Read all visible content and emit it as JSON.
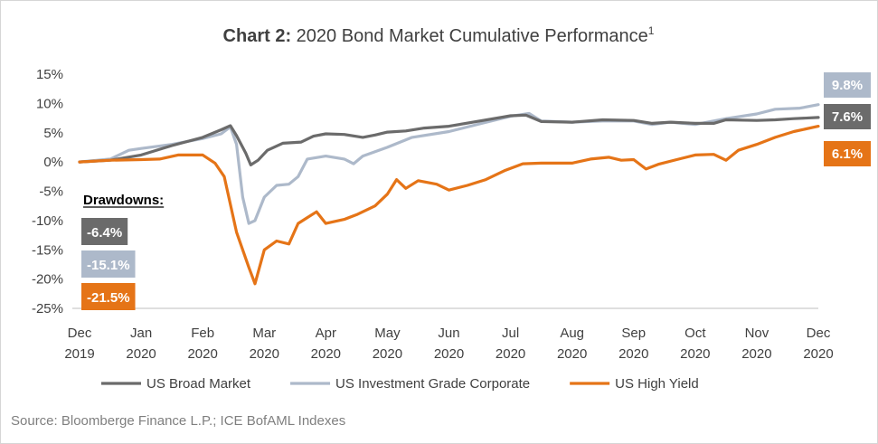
{
  "chart_data": {
    "type": "line",
    "title": {
      "bold": "Chart 2:",
      "main": " 2020 Bond Market Cumulative Performance",
      "superscript": "1"
    },
    "x_ticks": [
      [
        "Dec",
        "2019"
      ],
      [
        "Jan",
        "2020"
      ],
      [
        "Feb",
        "2020"
      ],
      [
        "Mar",
        "2020"
      ],
      [
        "Apr",
        "2020"
      ],
      [
        "May",
        "2020"
      ],
      [
        "Jun",
        "2020"
      ],
      [
        "Jul",
        "2020"
      ],
      [
        "Aug",
        "2020"
      ],
      [
        "Sep",
        "2020"
      ],
      [
        "Oct",
        "2020"
      ],
      [
        "Nov",
        "2020"
      ],
      [
        "Dec",
        "2020"
      ]
    ],
    "y_ticks": [
      "15%",
      "10%",
      "5%",
      "0%",
      "-5%",
      "-10%",
      "-15%",
      "-20%",
      "-25%"
    ],
    "ylim": [
      -25,
      15
    ],
    "x_unit": "months since Dec 2019",
    "series": [
      {
        "name": "US Broad Market",
        "color": "#6b6b6b",
        "points": [
          [
            0,
            0
          ],
          [
            0.5,
            0.3
          ],
          [
            1,
            1.2
          ],
          [
            1.5,
            2.8
          ],
          [
            2,
            4.2
          ],
          [
            2.3,
            5.5
          ],
          [
            2.45,
            6.2
          ],
          [
            2.55,
            4.5
          ],
          [
            2.7,
            1.5
          ],
          [
            2.78,
            -0.5
          ],
          [
            2.9,
            0.3
          ],
          [
            3.05,
            2
          ],
          [
            3.3,
            3.2
          ],
          [
            3.6,
            3.4
          ],
          [
            3.8,
            4.4
          ],
          [
            4,
            4.8
          ],
          [
            4.3,
            4.7
          ],
          [
            4.6,
            4.2
          ],
          [
            4.8,
            4.6
          ],
          [
            5,
            5.1
          ],
          [
            5.3,
            5.3
          ],
          [
            5.6,
            5.8
          ],
          [
            6,
            6.1
          ],
          [
            6.5,
            7
          ],
          [
            7,
            7.9
          ],
          [
            7.25,
            8
          ],
          [
            7.5,
            6.9
          ],
          [
            8,
            6.8
          ],
          [
            8.5,
            7.2
          ],
          [
            9,
            7.1
          ],
          [
            9.3,
            6.6
          ],
          [
            9.6,
            6.8
          ],
          [
            10,
            6.6
          ],
          [
            10.3,
            6.6
          ],
          [
            10.5,
            7.2
          ],
          [
            11,
            7.1
          ],
          [
            11.3,
            7.2
          ],
          [
            11.6,
            7.4
          ],
          [
            12,
            7.6
          ]
        ]
      },
      {
        "name": "US Investment Grade Corporate",
        "color": "#adb9ca",
        "points": [
          [
            0,
            0
          ],
          [
            0.5,
            0.5
          ],
          [
            0.8,
            2
          ],
          [
            1,
            2.3
          ],
          [
            1.5,
            3
          ],
          [
            2,
            4
          ],
          [
            2.3,
            4.8
          ],
          [
            2.45,
            6
          ],
          [
            2.55,
            3
          ],
          [
            2.65,
            -6
          ],
          [
            2.75,
            -10.5
          ],
          [
            2.85,
            -10
          ],
          [
            3,
            -6
          ],
          [
            3.2,
            -4
          ],
          [
            3.4,
            -3.8
          ],
          [
            3.55,
            -2.5
          ],
          [
            3.7,
            0.5
          ],
          [
            4,
            1
          ],
          [
            4.3,
            0.5
          ],
          [
            4.45,
            -0.3
          ],
          [
            4.6,
            1
          ],
          [
            5,
            2.5
          ],
          [
            5.4,
            4.2
          ],
          [
            6,
            5.2
          ],
          [
            6.5,
            6.5
          ],
          [
            7,
            7.8
          ],
          [
            7.3,
            8.3
          ],
          [
            7.5,
            7
          ],
          [
            8,
            6.8
          ],
          [
            8.5,
            7
          ],
          [
            9,
            7
          ],
          [
            9.3,
            6.4
          ],
          [
            9.6,
            6.8
          ],
          [
            10,
            6.4
          ],
          [
            10.2,
            6.8
          ],
          [
            10.5,
            7.4
          ],
          [
            11,
            8.2
          ],
          [
            11.3,
            9
          ],
          [
            11.7,
            9.2
          ],
          [
            12,
            9.8
          ]
        ]
      },
      {
        "name": "US High Yield",
        "color": "#e57417",
        "points": [
          [
            0,
            0
          ],
          [
            0.5,
            0.3
          ],
          [
            1,
            0.4
          ],
          [
            1.3,
            0.5
          ],
          [
            1.6,
            1.2
          ],
          [
            2,
            1.2
          ],
          [
            2.2,
            -0.2
          ],
          [
            2.35,
            -2.5
          ],
          [
            2.55,
            -12
          ],
          [
            2.75,
            -18
          ],
          [
            2.85,
            -20.8
          ],
          [
            3,
            -15
          ],
          [
            3.2,
            -13.5
          ],
          [
            3.4,
            -14
          ],
          [
            3.55,
            -10.5
          ],
          [
            3.7,
            -9.5
          ],
          [
            3.85,
            -8.5
          ],
          [
            4,
            -10.5
          ],
          [
            4.3,
            -9.8
          ],
          [
            4.5,
            -9
          ],
          [
            4.8,
            -7.5
          ],
          [
            5,
            -5.5
          ],
          [
            5.15,
            -3
          ],
          [
            5.3,
            -4.5
          ],
          [
            5.5,
            -3.2
          ],
          [
            5.8,
            -3.8
          ],
          [
            6,
            -4.8
          ],
          [
            6.3,
            -4
          ],
          [
            6.6,
            -3
          ],
          [
            6.9,
            -1.5
          ],
          [
            7.2,
            -0.3
          ],
          [
            7.5,
            -0.2
          ],
          [
            8,
            -0.2
          ],
          [
            8.3,
            0.5
          ],
          [
            8.6,
            0.8
          ],
          [
            8.8,
            0.3
          ],
          [
            9,
            0.4
          ],
          [
            9.2,
            -1.2
          ],
          [
            9.4,
            -0.4
          ],
          [
            9.7,
            0.4
          ],
          [
            10,
            1.2
          ],
          [
            10.3,
            1.3
          ],
          [
            10.5,
            0.3
          ],
          [
            10.7,
            2
          ],
          [
            11,
            3
          ],
          [
            11.3,
            4.2
          ],
          [
            11.6,
            5.2
          ],
          [
            12,
            6.1
          ]
        ]
      }
    ],
    "end_labels": [
      {
        "text": "9.8%",
        "color": "#adb9ca"
      },
      {
        "text": "7.6%",
        "color": "#6b6b6b"
      },
      {
        "text": "6.1%",
        "color": "#e57417"
      }
    ],
    "drawdowns": {
      "title": "Drawdowns:",
      "items": [
        {
          "text": "-6.4%",
          "color": "#6b6b6b"
        },
        {
          "text": "-15.1%",
          "color": "#adb9ca"
        },
        {
          "text": "-21.5%",
          "color": "#e57417"
        }
      ]
    },
    "source": "Source: Bloomberge Finance L.P.; ICE BofAML Indexes",
    "grid": false,
    "legend_position": "bottom"
  }
}
